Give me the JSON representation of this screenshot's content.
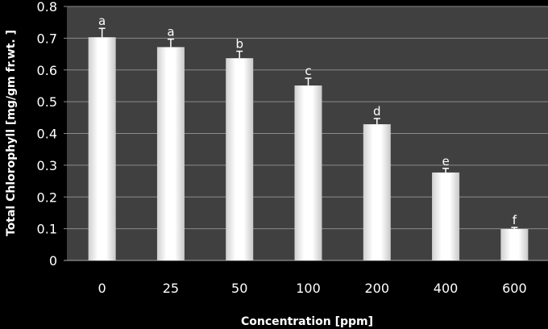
{
  "chart_data": {
    "type": "bar",
    "title": "",
    "xlabel": "Concentration [ppm]",
    "ylabel": "Total Chlorophyll [mg/gm fr.wt. ]",
    "categories": [
      "0",
      "25",
      "50",
      "100",
      "200",
      "400",
      "600"
    ],
    "values": [
      0.703,
      0.672,
      0.637,
      0.551,
      0.429,
      0.277,
      0.099
    ],
    "errors": [
      0.028,
      0.025,
      0.022,
      0.023,
      0.018,
      0.013,
      0.005
    ],
    "significance_labels": [
      "a",
      "a",
      "b",
      "c",
      "d",
      "e",
      "f"
    ],
    "ylim": [
      0,
      0.8
    ],
    "yticks": [
      0,
      0.1,
      0.2,
      0.3,
      0.4,
      0.5,
      0.6,
      0.7,
      0.8
    ],
    "ytick_labels": [
      "0",
      "0.1",
      "0.2",
      "0.3",
      "0.4",
      "0.5",
      "0.6",
      "0.7",
      "0.8"
    ],
    "grid": true,
    "colors": {
      "background": "#000000",
      "plot_area": "#404040",
      "grid": "#8a8a8a",
      "bar": "#ffffff",
      "bar_shade": "#c8c8c8"
    }
  }
}
